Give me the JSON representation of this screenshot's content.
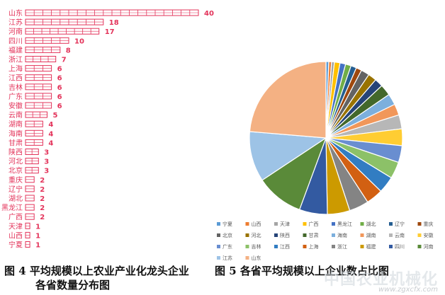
{
  "bar_chart": {
    "type": "bar",
    "orientation": "horizontal",
    "categories": [
      "山东",
      "江苏",
      "河南",
      "四川",
      "福建",
      "浙江",
      "上海",
      "江西",
      "吉林",
      "广东",
      "安徽",
      "云南",
      "湖南",
      "海南",
      "甘肃",
      "陕西",
      "河北",
      "北京",
      "重庆",
      "辽宁",
      "湖北",
      "黑龙江",
      "广西",
      "天津",
      "山西",
      "宁夏"
    ],
    "values": [
      40,
      18,
      17,
      10,
      8,
      7,
      6,
      6,
      6,
      6,
      6,
      5,
      4,
      4,
      4,
      3,
      3,
      3,
      2,
      2,
      2,
      2,
      2,
      1,
      1,
      1
    ],
    "bar_color": "#e3335a",
    "label_color": "#e3335a"
  },
  "pie_chart": {
    "type": "pie",
    "legend_position": "bottom",
    "categories": [
      "宁夏",
      "山西",
      "天津",
      "广西",
      "黑龙江",
      "湖北",
      "辽宁",
      "重庆",
      "北京",
      "河北",
      "陕西",
      "甘肃",
      "海南",
      "湖南",
      "云南",
      "安徽",
      "广东",
      "吉林",
      "江西",
      "上海",
      "浙江",
      "福建",
      "四川",
      "河南",
      "江苏",
      "山东"
    ],
    "values": [
      1,
      1,
      1,
      2,
      2,
      2,
      2,
      2,
      3,
      3,
      3,
      4,
      4,
      4,
      5,
      6,
      6,
      6,
      6,
      6,
      7,
      8,
      10,
      17,
      18,
      40
    ],
    "colors": [
      "#5b9bd5",
      "#ed7d31",
      "#a5a5a5",
      "#ffc000",
      "#4472c4",
      "#70ad47",
      "#255e91",
      "#9e480e",
      "#636363",
      "#997300",
      "#264478",
      "#43682b",
      "#7cafdd",
      "#f1975a",
      "#b7b7b7",
      "#ffcd33",
      "#698ed0",
      "#8cc168",
      "#327dc2",
      "#d26012",
      "#848484",
      "#cc9a00",
      "#335aa1",
      "#5a8a39",
      "#9dc3e6",
      "#f4b183"
    ]
  },
  "captions": {
    "fig4_line1": "图 4  平均规模以上农业产业化龙头企业",
    "fig4_line2": "各省数量分布图",
    "fig5": "图 5  各省平均规模以上企业数占比图"
  },
  "watermark": {
    "line1": "中国农业机械化",
    "line2": "www.zgxcfx.com"
  }
}
